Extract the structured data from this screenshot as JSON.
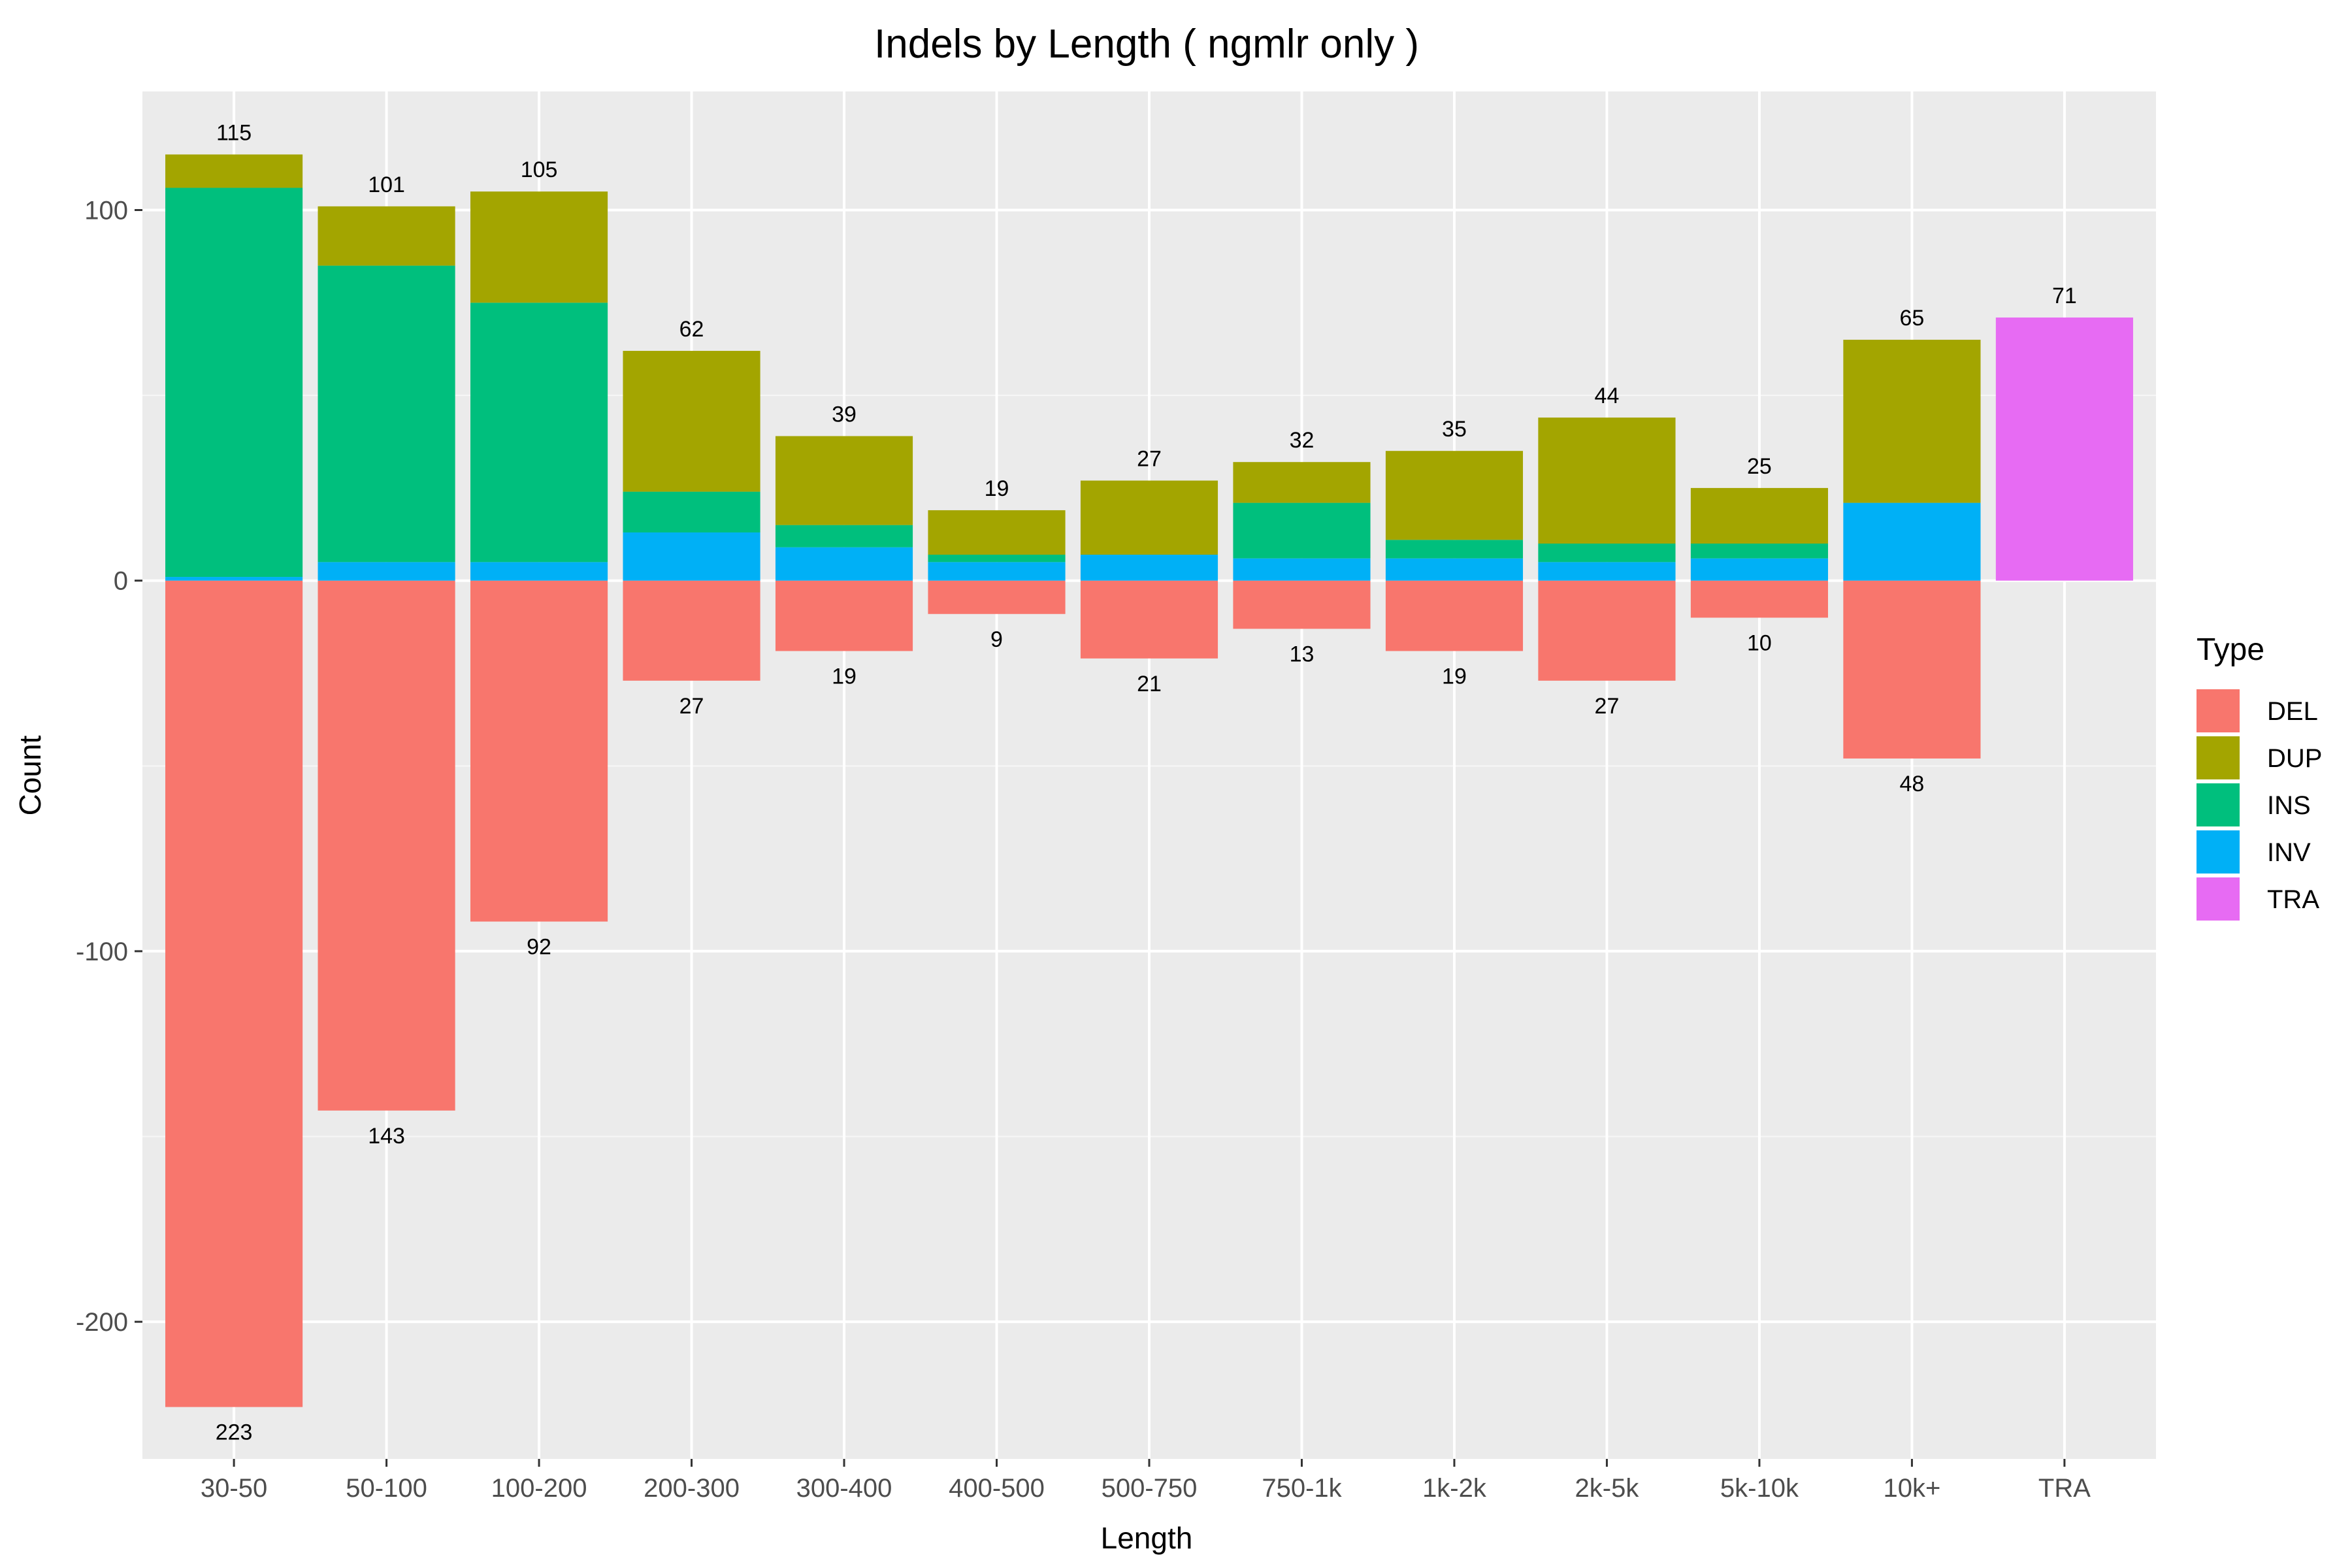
{
  "chart_data": {
    "type": "bar",
    "title": "Indels by Length ( ngmlr only )",
    "xlabel": "Length",
    "ylabel": "Count",
    "ylim": [
      -237,
      132
    ],
    "y_ticks": [
      100,
      0,
      -100,
      -200
    ],
    "y_tick_labels": [
      "100",
      "0",
      "-100",
      "-200"
    ],
    "grid": true,
    "legend": {
      "title": "Type",
      "position": "right",
      "entries": [
        "DEL",
        "DUP",
        "INS",
        "INV",
        "TRA"
      ]
    },
    "colors": {
      "DEL": "#F8766D",
      "DUP": "#A3A500",
      "INS": "#00BF7D",
      "INV": "#00B0F6",
      "TRA": "#E76BF3"
    },
    "categories": [
      "30-50",
      "50-100",
      "100-200",
      "200-300",
      "300-400",
      "400-500",
      "500-750",
      "750-1k",
      "1k-2k",
      "2k-5k",
      "5k-10k",
      "10k+",
      "TRA"
    ],
    "series": [
      {
        "name": "DEL",
        "values": [
          -223,
          -143,
          -92,
          -27,
          -19,
          -9,
          -21,
          -13,
          -19,
          -27,
          -10,
          -48,
          0
        ]
      },
      {
        "name": "INV",
        "values": [
          1,
          5,
          5,
          13,
          9,
          5,
          7,
          6,
          6,
          5,
          6,
          21,
          0
        ]
      },
      {
        "name": "INS",
        "values": [
          105,
          80,
          70,
          11,
          6,
          2,
          0,
          15,
          5,
          5,
          4,
          0,
          0
        ]
      },
      {
        "name": "DUP",
        "values": [
          9,
          16,
          30,
          38,
          24,
          12,
          20,
          11,
          24,
          34,
          15,
          44,
          0
        ]
      },
      {
        "name": "TRA",
        "values": [
          0,
          0,
          0,
          0,
          0,
          0,
          0,
          0,
          0,
          0,
          0,
          0,
          71
        ]
      }
    ],
    "top_labels": [
      "115",
      "101",
      "105",
      "62",
      "39",
      "19",
      "27",
      "32",
      "35",
      "44",
      "25",
      "65",
      "71"
    ],
    "bottom_labels": [
      "223",
      "143",
      "92",
      "27",
      "19",
      "9",
      "21",
      "13",
      "19",
      "27",
      "10",
      "48",
      ""
    ]
  }
}
